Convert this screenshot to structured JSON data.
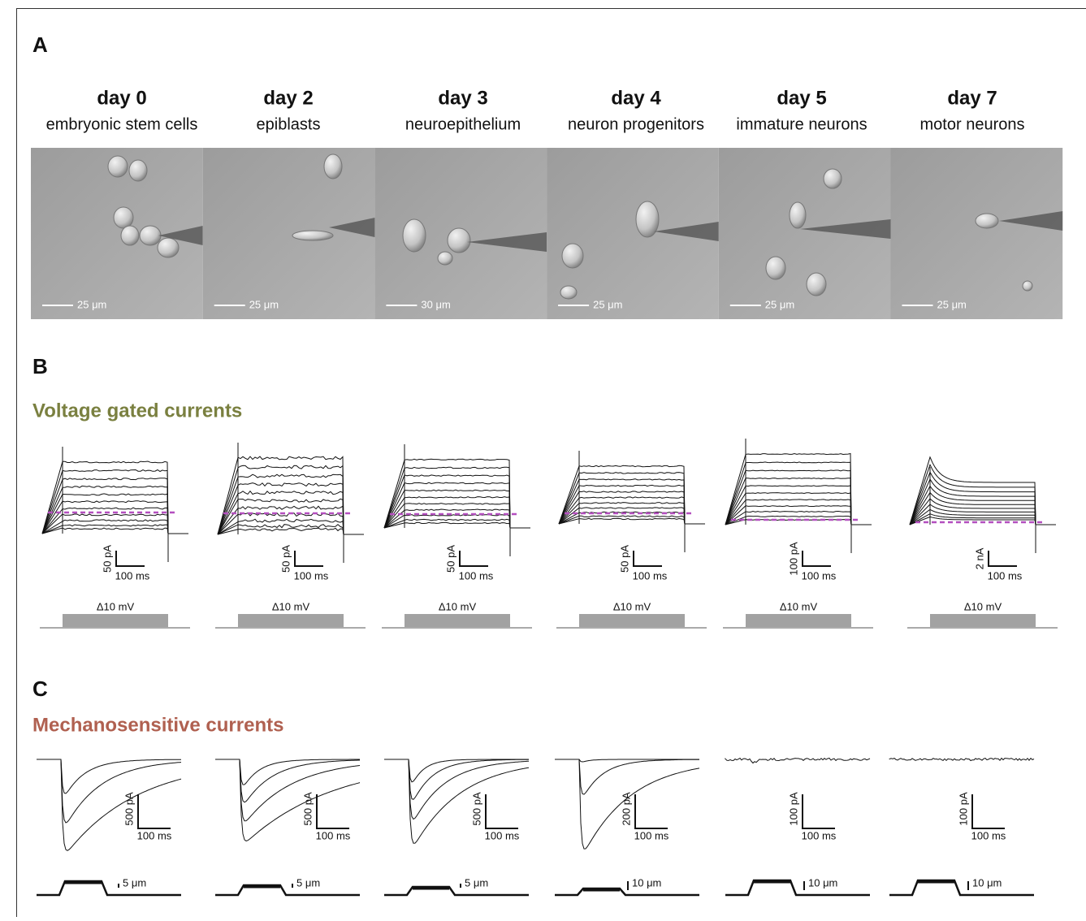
{
  "panel_a": {
    "label": "A",
    "columns": [
      {
        "day": "day 0",
        "stage": "embryonic stem cells",
        "scale": "25 μm"
      },
      {
        "day": "day 2",
        "stage": "epiblasts",
        "scale": "25 μm"
      },
      {
        "day": "day 3",
        "stage": "neuroepithelium",
        "scale": "30 μm"
      },
      {
        "day": "day 4",
        "stage": "neuron progenitors",
        "scale": "25 μm"
      },
      {
        "day": "day 5",
        "stage": "immature neurons",
        "scale": "25 μm"
      },
      {
        "day": "day 7",
        "stage": "motor neurons",
        "scale": "25 μm"
      }
    ]
  },
  "panel_b": {
    "label": "B",
    "title": "Voltage gated currents",
    "recordings": [
      {
        "y_scale": "50 pA",
        "x_scale": "100 ms",
        "step": "Δ10 mV"
      },
      {
        "y_scale": "50 pA",
        "x_scale": "100 ms",
        "step": "Δ10 mV"
      },
      {
        "y_scale": "50 pA",
        "x_scale": "100 ms",
        "step": "Δ10 mV"
      },
      {
        "y_scale": "50 pA",
        "x_scale": "100 ms",
        "step": "Δ10 mV"
      },
      {
        "y_scale": "100 pA",
        "x_scale": "100 ms",
        "step": "Δ10 mV"
      },
      {
        "y_scale": "2 nA",
        "x_scale": "100 ms",
        "step": "Δ10 mV"
      }
    ]
  },
  "panel_c": {
    "label": "C",
    "title": "Mechanosensitive currents",
    "recordings": [
      {
        "y_scale": "500 pA",
        "x_scale": "100 ms",
        "stim_scale": "5 μm"
      },
      {
        "y_scale": "500 pA",
        "x_scale": "100 ms",
        "stim_scale": "5 μm"
      },
      {
        "y_scale": "500 pA",
        "x_scale": "100 ms",
        "stim_scale": "5 μm"
      },
      {
        "y_scale": "200 pA",
        "x_scale": "100 ms",
        "stim_scale": "10 μm"
      },
      {
        "y_scale": "100 pA",
        "x_scale": "100 ms",
        "stim_scale": "10 μm"
      },
      {
        "y_scale": "100 pA",
        "x_scale": "100 ms",
        "stim_scale": "10 μm"
      }
    ]
  }
}
